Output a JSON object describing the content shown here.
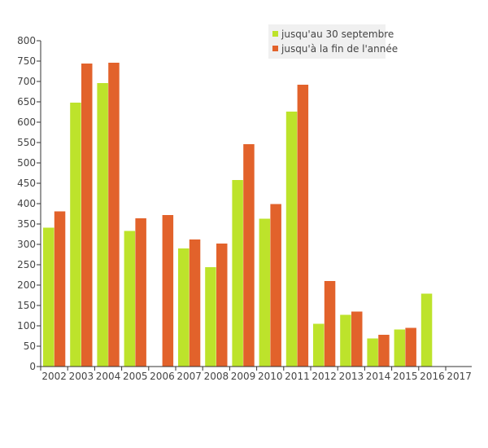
{
  "chart_data": {
    "type": "bar",
    "categories": [
      "2002",
      "2003",
      "2004",
      "2005",
      "2006",
      "2007",
      "2008",
      "2009",
      "2010",
      "2011",
      "2012",
      "2013",
      "2014",
      "2015",
      "2016",
      "2017"
    ],
    "series": [
      {
        "name": "jusqu'au 30 septembre",
        "color": "#bde32b",
        "values": [
          341,
          648,
          696,
          333,
          0,
          290,
          244,
          458,
          363,
          626,
          105,
          127,
          69,
          91,
          179,
          0
        ]
      },
      {
        "name": "jusqu'à la fin de l'année",
        "color": "#e2622b",
        "values": [
          381,
          744,
          746,
          364,
          372,
          312,
          302,
          546,
          399,
          692,
          210,
          135,
          78,
          95,
          0,
          0
        ]
      }
    ],
    "ylim": [
      0,
      800
    ],
    "yticks": [
      0,
      50,
      100,
      150,
      200,
      250,
      300,
      350,
      400,
      450,
      500,
      550,
      600,
      650,
      700,
      750,
      800
    ],
    "legend_position": "top-right",
    "grid": false
  }
}
